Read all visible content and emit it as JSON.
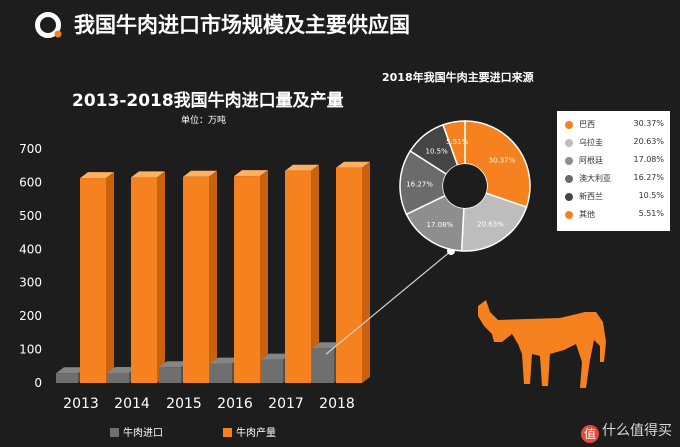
{
  "header": {
    "title": "我国牛肉进口市场规模及主要供应国",
    "logo_icon": "brand-ring-icon"
  },
  "colors": {
    "orange": "#f5821f",
    "gray": "#6f6f6f",
    "light_gray": "#bdbdbd",
    "dark_gray": "#4a4a4a",
    "background": "#1d1d1d"
  },
  "chart_data": [
    {
      "type": "bar",
      "title": "2013-2018我国牛肉进口量及产量",
      "unit": "单位：万吨",
      "categories": [
        "2013",
        "2014",
        "2015",
        "2016",
        "2017",
        "2018"
      ],
      "series": [
        {
          "name": "牛肉进口",
          "values": [
            29,
            30,
            47,
            58,
            70,
            104
          ]
        },
        {
          "name": "牛肉产量",
          "values": [
            613,
            615,
            617,
            619,
            635,
            644
          ]
        }
      ],
      "ylim": [
        0,
        700
      ],
      "yticks": [
        "0",
        "100",
        "200",
        "300",
        "400",
        "500",
        "600",
        "700"
      ],
      "legend_position": "bottom"
    },
    {
      "type": "pie",
      "title": "2018年我国牛肉主要进口来源",
      "labels": [
        "巴西",
        "乌拉圭",
        "阿根廷",
        "澳大利亚",
        "新西兰",
        "其他"
      ],
      "percent_labels": [
        "30.37%",
        "20.63%",
        "17.08%",
        "16.27%",
        "10.5%",
        "5.51%"
      ],
      "inner_labels": [
        "30.37%",
        "20.63%",
        "17.08%",
        "16.27%",
        "10.5%",
        "5.51%"
      ],
      "values": [
        30.37,
        20.63,
        17.08,
        16.27,
        10.5,
        5.51
      ],
      "slice_colors": [
        "#f5821f",
        "#bdbdbd",
        "#8e8e8e",
        "#6b6b6b",
        "#454545",
        "#f5821f"
      ],
      "legend_position": "right"
    }
  ],
  "watermark": {
    "badge": "值",
    "text": "什么值得买"
  },
  "decorations": {
    "cow_icon": "cow-silhouette-icon"
  }
}
